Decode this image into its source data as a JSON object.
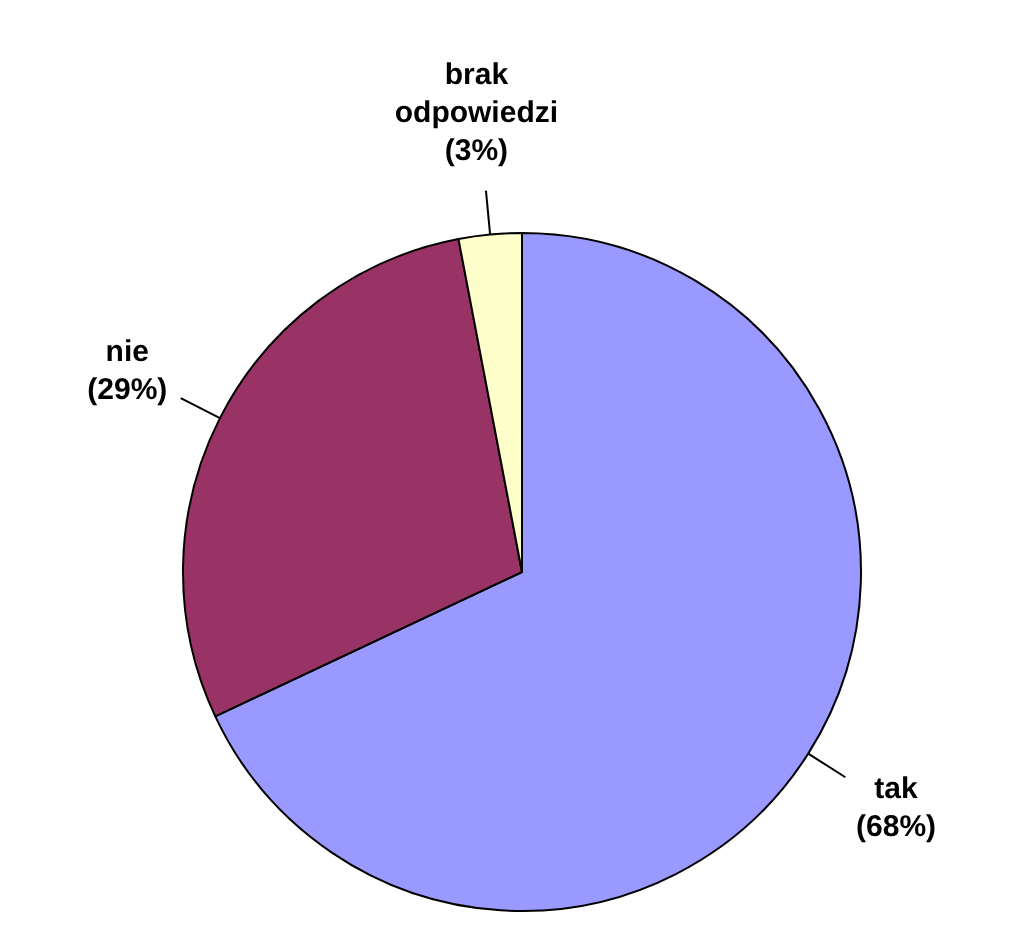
{
  "chart_data": {
    "type": "pie",
    "categories": [
      "tak",
      "nie",
      "brak odpowiedzi"
    ],
    "values": [
      68,
      29,
      3
    ],
    "colors": [
      "#9999ff",
      "#993366",
      "#ffffcc"
    ],
    "value_labels": [
      "(68%)",
      "(29%)",
      "(3%)"
    ],
    "legend": false
  }
}
